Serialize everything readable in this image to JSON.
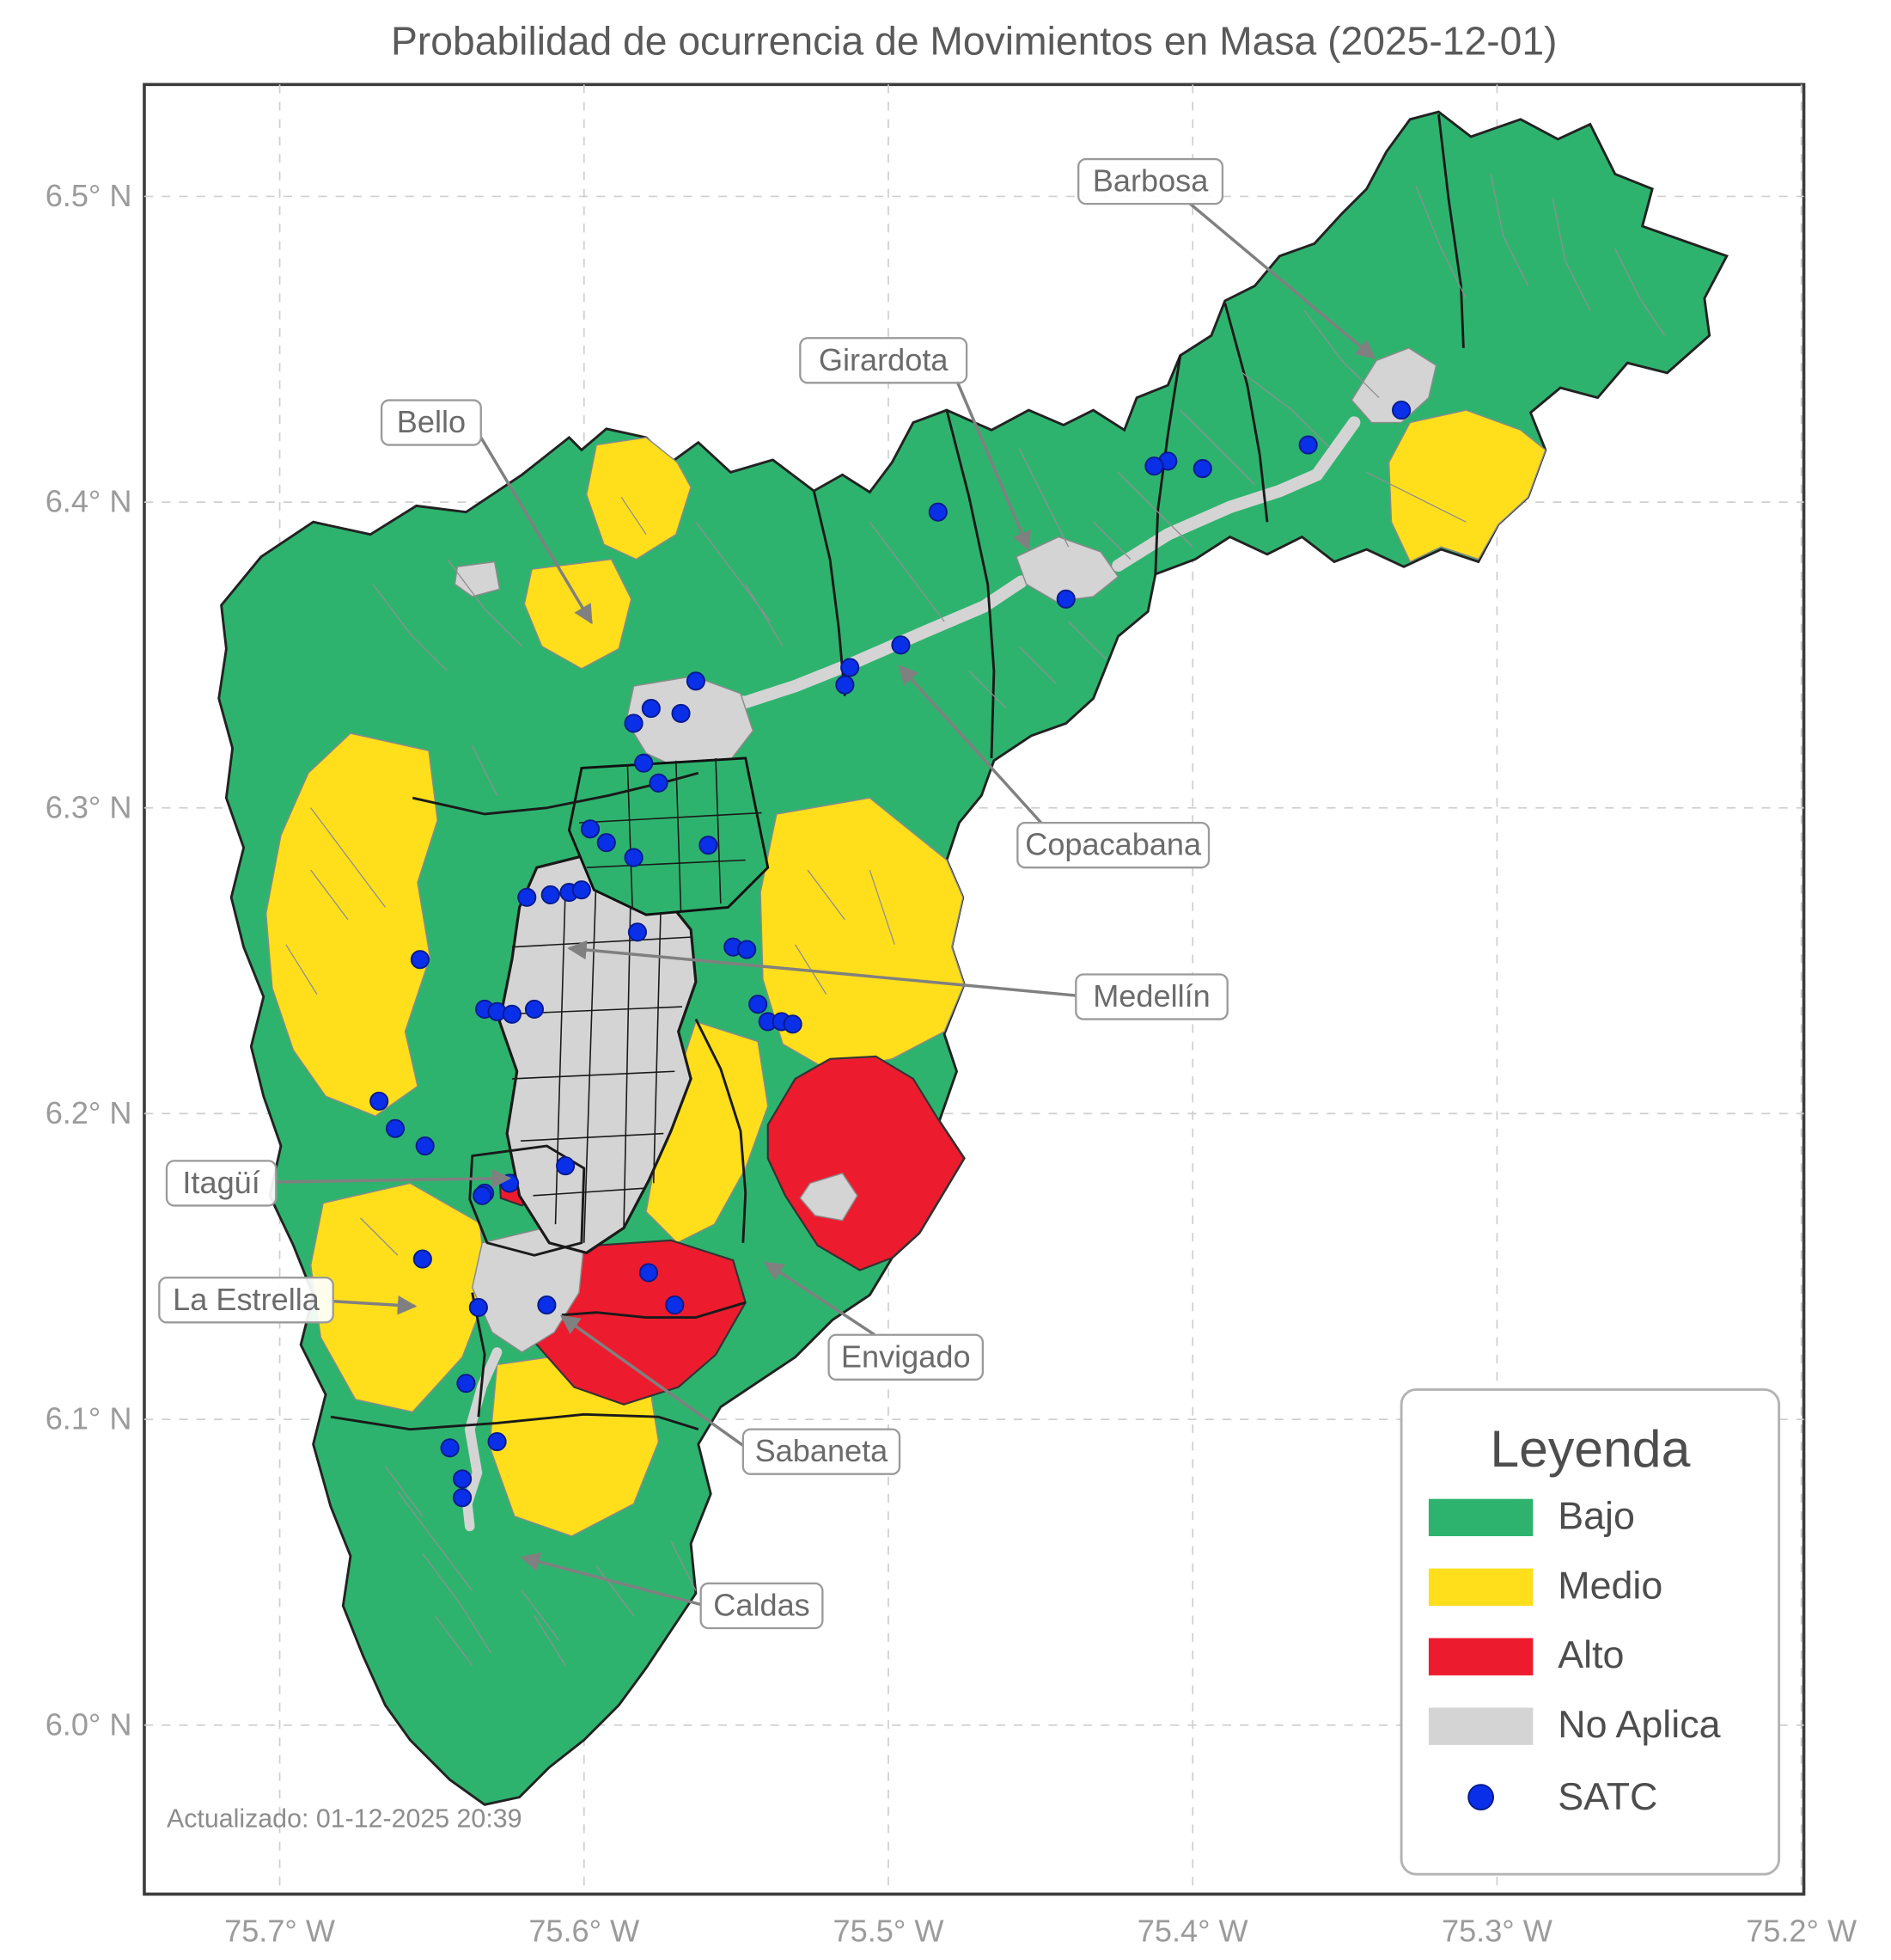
{
  "title": "Probabilidad de ocurrencia de Movimientos en Masa (2025-12-01)",
  "updated_text": "Actualizado: 01-12-2025 20:39",
  "axes": {
    "x_ticks": [
      "75.7° W",
      "75.6° W",
      "75.5° W",
      "75.4° W",
      "75.3° W",
      "75.2° W"
    ],
    "y_ticks": [
      "6.5° N",
      "6.4° N",
      "6.3° N",
      "6.2° N",
      "6.1° N",
      "6.0° N"
    ]
  },
  "legend": {
    "title": "Leyenda",
    "items": [
      {
        "label": "Bajo",
        "color": "#2EB36E",
        "type": "patch"
      },
      {
        "label": "Medio",
        "color": "#FFDF1B",
        "type": "patch"
      },
      {
        "label": "Alto",
        "color": "#ED1B2E",
        "type": "patch"
      },
      {
        "label": "No Aplica",
        "color": "#D4D4D4",
        "type": "patch"
      },
      {
        "label": "SATC",
        "color": "#0A2FE8",
        "type": "point"
      }
    ]
  },
  "annotations": [
    {
      "label": "Barbosa"
    },
    {
      "label": "Girardota"
    },
    {
      "label": "Bello"
    },
    {
      "label": "Copacabana"
    },
    {
      "label": "Medellín"
    },
    {
      "label": "Itagüí"
    },
    {
      "label": "La Estrella"
    },
    {
      "label": "Envigado"
    },
    {
      "label": "Sabaneta"
    },
    {
      "label": "Caldas"
    }
  ],
  "map": {
    "risk_levels": [
      "Bajo",
      "Medio",
      "Alto",
      "No Aplica"
    ],
    "satc_points": [
      [
        1128,
        330
      ],
      [
        1053,
        358
      ],
      [
        968,
        377
      ],
      [
        940,
        371
      ],
      [
        929,
        375
      ],
      [
        858,
        482
      ],
      [
        755,
        412
      ],
      [
        725,
        519
      ],
      [
        684,
        537
      ],
      [
        680,
        551
      ],
      [
        560,
        548
      ],
      [
        548,
        574
      ],
      [
        524,
        570
      ],
      [
        510,
        582
      ],
      [
        518,
        614
      ],
      [
        530,
        630
      ],
      [
        475,
        667
      ],
      [
        488,
        678
      ],
      [
        510,
        690
      ],
      [
        570,
        680
      ],
      [
        424,
        722
      ],
      [
        443,
        720
      ],
      [
        458,
        718
      ],
      [
        468,
        716
      ],
      [
        513,
        750
      ],
      [
        590,
        762
      ],
      [
        601,
        764
      ],
      [
        610,
        808
      ],
      [
        618,
        822
      ],
      [
        629,
        822
      ],
      [
        638,
        824
      ],
      [
        338,
        772
      ],
      [
        390,
        812
      ],
      [
        400,
        814
      ],
      [
        412,
        816
      ],
      [
        430,
        812
      ],
      [
        305,
        886
      ],
      [
        318,
        908
      ],
      [
        342,
        922
      ],
      [
        390,
        960
      ],
      [
        410,
        952
      ],
      [
        455,
        938
      ],
      [
        388,
        962
      ],
      [
        340,
        1013
      ],
      [
        385,
        1052
      ],
      [
        522,
        1024
      ],
      [
        543,
        1050
      ],
      [
        440,
        1050
      ],
      [
        375,
        1113
      ],
      [
        362,
        1165
      ],
      [
        400,
        1160
      ],
      [
        372,
        1190
      ],
      [
        372,
        1205
      ]
    ]
  }
}
